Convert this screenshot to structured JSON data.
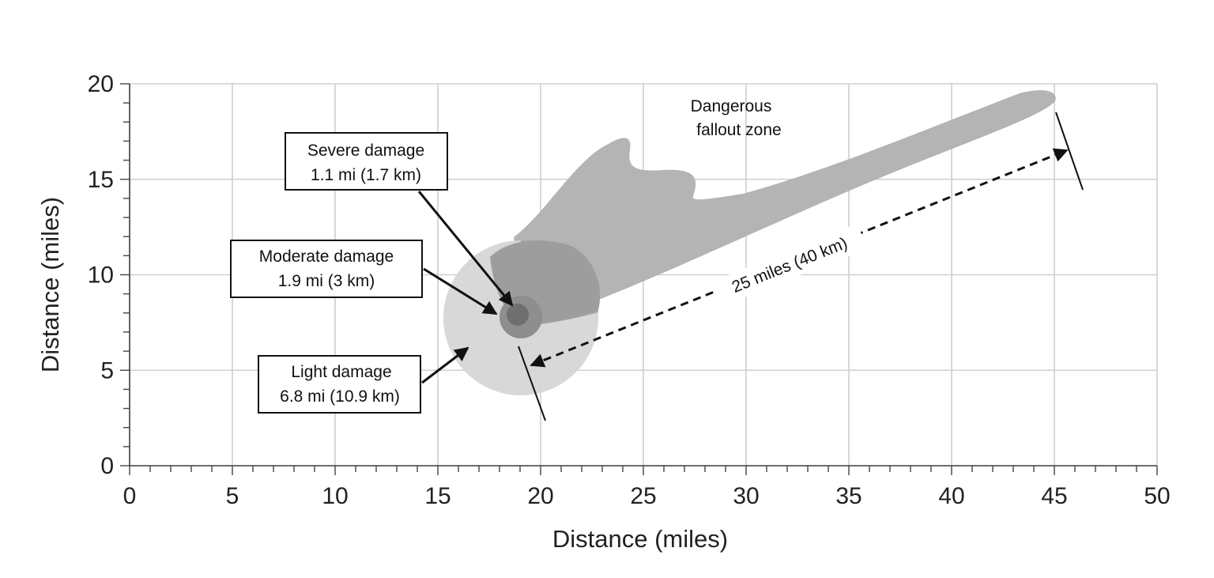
{
  "chart_data": {
    "type": "diagram",
    "xlabel": "Distance (miles)",
    "ylabel": "Distance (miles)",
    "xlim": [
      0,
      50
    ],
    "ylim": [
      0,
      20
    ],
    "x_ticks": [
      "0",
      "5",
      "10",
      "15",
      "20",
      "25",
      "30",
      "35",
      "40",
      "45",
      "50"
    ],
    "y_ticks": [
      "0",
      "5",
      "10",
      "15",
      "20"
    ],
    "grid": true,
    "ground_zero": {
      "x": 19,
      "y": 7.8
    },
    "zones": [
      {
        "name": "Severe damage",
        "radius_text": "1.1 mi (1.7 km)",
        "color": "#6f6f6f"
      },
      {
        "name": "Moderate damage",
        "radius_text": "1.9 mi (3 km)",
        "color": "#8e8e8e"
      },
      {
        "name": "Light damage",
        "radius_text": "6.8 mi (10.9 km)",
        "color": "#d6d6d6"
      }
    ],
    "fallout": {
      "label_line1": "Dangerous",
      "label_line2": "fallout zone",
      "color": "#b4b4b4"
    },
    "distance_annotation": "25 miles (40 km)"
  },
  "labels": {
    "severe_line1": "Severe damage",
    "severe_line2": "1.1 mi (1.7 km)",
    "moderate_line1": "Moderate damage",
    "moderate_line2": "1.9 mi (3 km)",
    "light_line1": "Light damage",
    "light_line2": "6.8 mi (10.9 km)",
    "fallout_line1": "Dangerous",
    "fallout_line2": "fallout zone",
    "distance": "25 miles (40 km)",
    "xlabel": "Distance (miles)",
    "ylabel": "Distance (miles)"
  }
}
